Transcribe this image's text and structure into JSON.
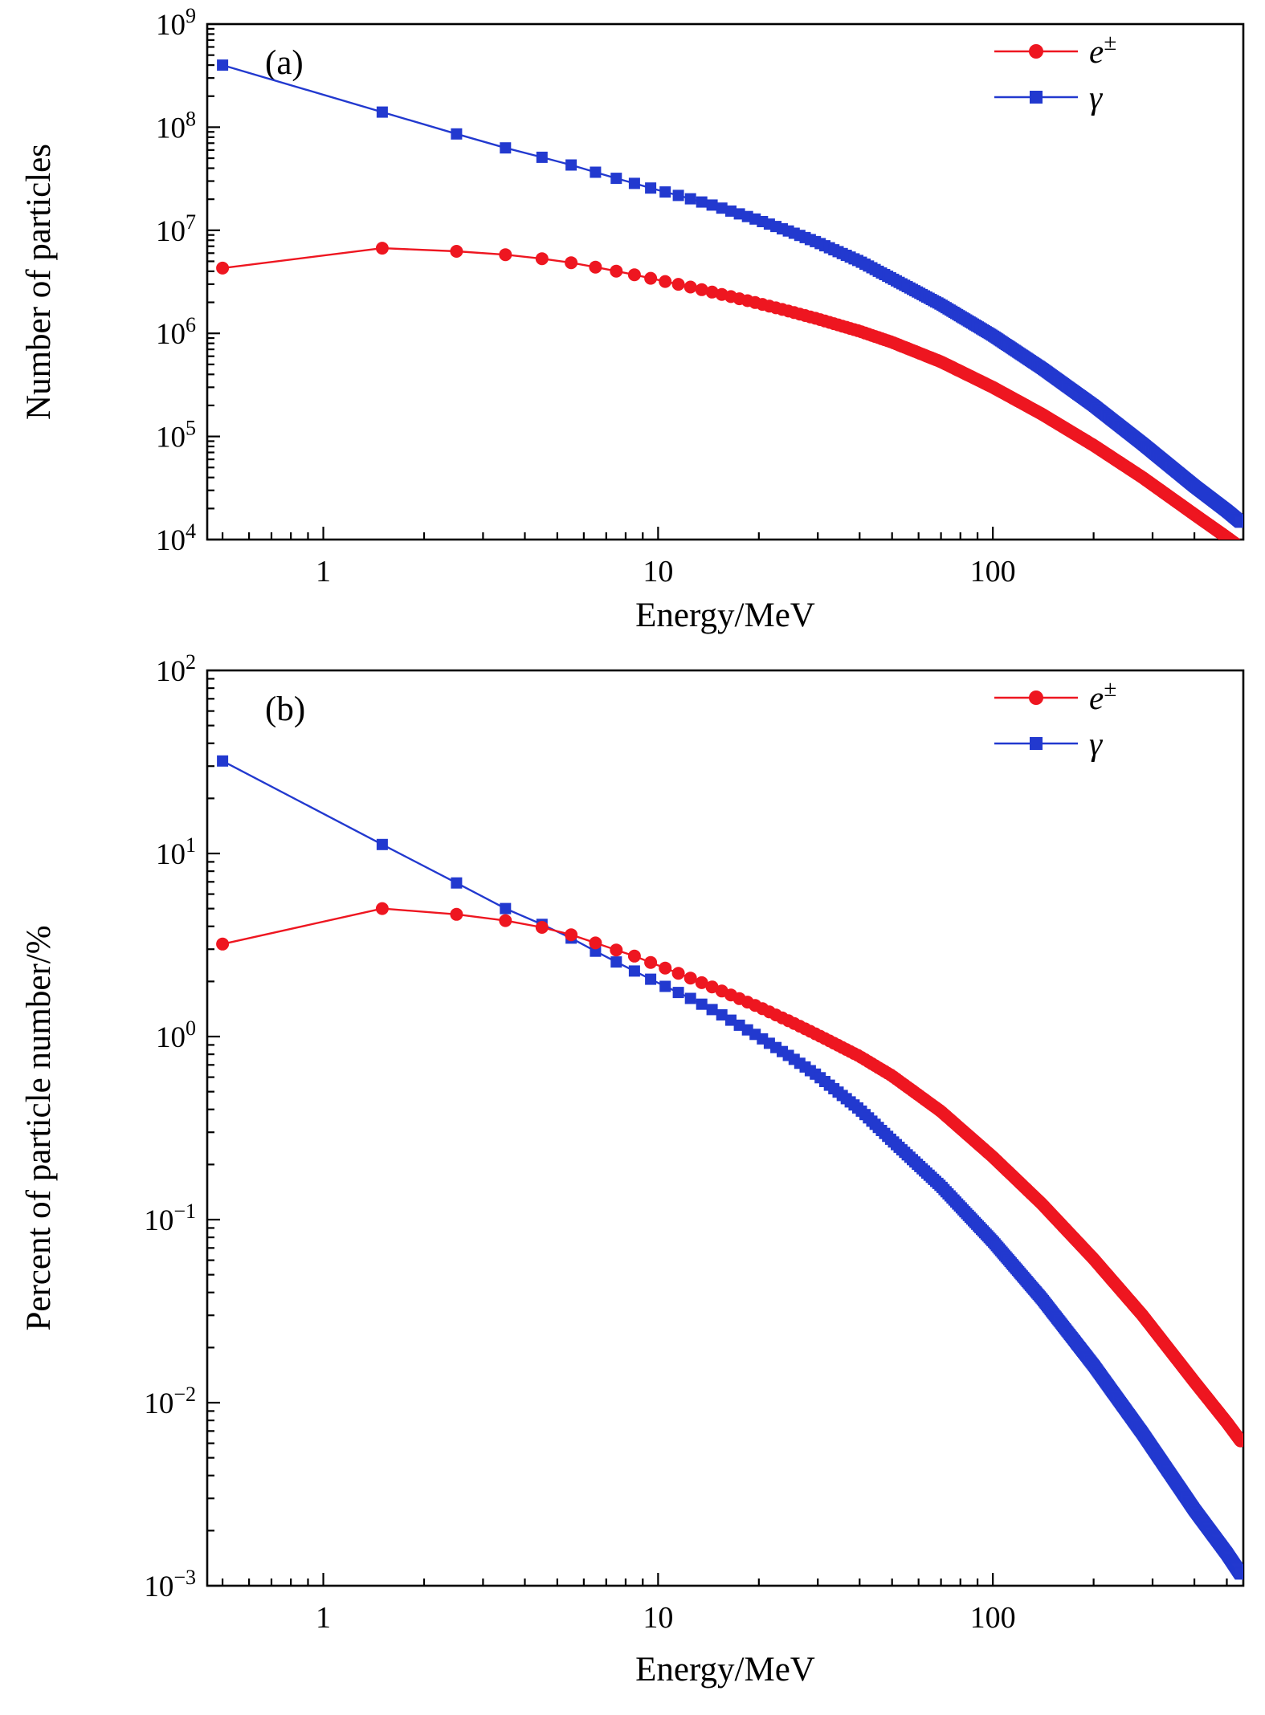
{
  "page": {
    "background": "#ffffff"
  },
  "colors": {
    "electron": "#ee1620",
    "gamma": "#2239cf",
    "axis": "#000000"
  },
  "chart_data": [
    {
      "type": "line",
      "panel_tag": "(a)",
      "xlabel": "Energy/MeV",
      "ylabel": "Number of particles",
      "x_axis": {
        "scale": "log",
        "min": 0.45,
        "max": 560,
        "major_ticks": [
          1,
          10,
          100
        ],
        "major_tick_labels": [
          "1",
          "10",
          "100"
        ]
      },
      "y_axis": {
        "scale": "log",
        "min_exp": 4,
        "max_exp": 9
      },
      "bins": {
        "start": 0.5,
        "step": 1,
        "max": 550
      },
      "legend": [
        {
          "series": "electrons",
          "base": "e",
          "sup": "±"
        },
        {
          "series": "gamma",
          "base": "γ",
          "sup": ""
        }
      ],
      "series": [
        {
          "name": "gamma",
          "marker": "square",
          "color_key": "gamma",
          "anchors": [
            [
              0.5,
              400000000.0
            ],
            [
              1.5,
              140000000.0
            ],
            [
              2.5,
              86000000.0
            ],
            [
              3.5,
              63000000.0
            ],
            [
              4.5,
              51000000.0
            ],
            [
              5.5,
              43000000.0
            ],
            [
              7,
              34000000.0
            ],
            [
              8.5,
              28500000.0
            ],
            [
              10,
              24500000.0
            ],
            [
              12,
              21000000.0
            ],
            [
              15,
              17000000.0
            ],
            [
              20,
              12500000.0
            ],
            [
              25,
              9600000.0
            ],
            [
              30,
              7600000.0
            ],
            [
              40,
              5000000.0
            ],
            [
              50,
              3400000.0
            ],
            [
              70,
              1900000.0
            ],
            [
              100,
              950000.0
            ],
            [
              140,
              460000.0
            ],
            [
              200,
              200000.0
            ],
            [
              280,
              85000.0
            ],
            [
              400,
              33000.0
            ],
            [
              500,
              19000.0
            ],
            [
              560,
              14000.0
            ]
          ]
        },
        {
          "name": "electrons",
          "marker": "circle",
          "color_key": "electron",
          "anchors": [
            [
              0.5,
              4300000.0
            ],
            [
              1.5,
              6700000.0
            ],
            [
              2.5,
              6250000.0
            ],
            [
              3.5,
              5800000.0
            ],
            [
              4.5,
              5300000.0
            ],
            [
              5.5,
              4850000.0
            ],
            [
              7,
              4200000.0
            ],
            [
              8.5,
              3700000.0
            ],
            [
              10,
              3300000.0
            ],
            [
              12,
              2900000.0
            ],
            [
              15,
              2450000.0
            ],
            [
              20,
              1950000.0
            ],
            [
              25,
              1620000.0
            ],
            [
              30,
              1380000.0
            ],
            [
              40,
              1050000.0
            ],
            [
              50,
              820000.0
            ],
            [
              70,
              530000.0
            ],
            [
              100,
              300000.0
            ],
            [
              140,
              165000.0
            ],
            [
              200,
              82000.0
            ],
            [
              280,
              40000.0
            ],
            [
              400,
              17500.0
            ],
            [
              500,
              10500.0
            ],
            [
              560,
              8000.0
            ]
          ]
        }
      ]
    },
    {
      "type": "line",
      "panel_tag": "(b)",
      "xlabel": "Energy/MeV",
      "ylabel": "Percent of particle number/%",
      "x_axis": {
        "scale": "log",
        "min": 0.45,
        "max": 560,
        "major_ticks": [
          1,
          10,
          100
        ],
        "major_tick_labels": [
          "1",
          "10",
          "100"
        ]
      },
      "y_axis": {
        "scale": "log",
        "min_exp": -3,
        "max_exp": 2
      },
      "bins": {
        "start": 0.5,
        "step": 1,
        "max": 550
      },
      "legend": [
        {
          "series": "electrons",
          "base": "e",
          "sup": "±"
        },
        {
          "series": "gamma",
          "base": "γ",
          "sup": ""
        }
      ],
      "series": [
        {
          "name": "gamma",
          "marker": "square",
          "color_key": "gamma",
          "anchors": [
            [
              0.5,
              32
            ],
            [
              1.5,
              11.2
            ],
            [
              2.5,
              6.9
            ],
            [
              3.5,
              5.0
            ],
            [
              4.5,
              4.1
            ],
            [
              5.5,
              3.45
            ],
            [
              7,
              2.72
            ],
            [
              8.5,
              2.28
            ],
            [
              10,
              1.96
            ],
            [
              12,
              1.68
            ],
            [
              15,
              1.36
            ],
            [
              20,
              1.0
            ],
            [
              25,
              0.77
            ],
            [
              30,
              0.61
            ],
            [
              40,
              0.4
            ],
            [
              50,
              0.27
            ],
            [
              70,
              0.152
            ],
            [
              100,
              0.076
            ],
            [
              140,
              0.037
            ],
            [
              200,
              0.016
            ],
            [
              280,
              0.0068
            ],
            [
              400,
              0.0026
            ],
            [
              500,
              0.0015
            ],
            [
              560,
              0.0011
            ]
          ]
        },
        {
          "name": "electrons",
          "marker": "circle",
          "color_key": "electron",
          "anchors": [
            [
              0.5,
              3.2
            ],
            [
              1.5,
              5.0
            ],
            [
              2.5,
              4.65
            ],
            [
              3.5,
              4.3
            ],
            [
              4.5,
              3.95
            ],
            [
              5.5,
              3.6
            ],
            [
              7,
              3.1
            ],
            [
              8.5,
              2.75
            ],
            [
              10,
              2.45
            ],
            [
              12,
              2.15
            ],
            [
              15,
              1.82
            ],
            [
              20,
              1.45
            ],
            [
              25,
              1.2
            ],
            [
              30,
              1.02
            ],
            [
              40,
              0.78
            ],
            [
              50,
              0.61
            ],
            [
              70,
              0.39
            ],
            [
              100,
              0.22
            ],
            [
              140,
              0.122
            ],
            [
              200,
              0.061
            ],
            [
              280,
              0.03
            ],
            [
              400,
              0.013
            ],
            [
              500,
              0.0078
            ],
            [
              560,
              0.0059
            ]
          ]
        }
      ]
    }
  ]
}
